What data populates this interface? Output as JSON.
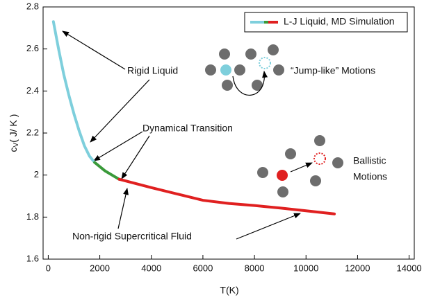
{
  "chart_data": {
    "type": "line",
    "x_label": "T(K)",
    "y_label": {
      "symbol": "c",
      "subscript": "V",
      "unit": "( J/ K )"
    },
    "legend": {
      "label": "L-J Liquid, MD Simulation",
      "position": "upper right"
    },
    "series": [
      {
        "color": "#7ecfdc",
        "x": [
          200,
          400,
          600,
          800,
          1000,
          1200,
          1400,
          1600,
          1800
        ],
        "values": [
          2.73,
          2.6,
          2.48,
          2.38,
          2.29,
          2.21,
          2.14,
          2.09,
          2.06
        ]
      },
      {
        "color": "#3a9a3a",
        "x": [
          1800,
          2200,
          2750
        ],
        "values": [
          2.06,
          2.02,
          1.98
        ]
      },
      {
        "color": "#e02020",
        "x": [
          2750,
          4000,
          5000,
          6000,
          7000,
          8000,
          9000,
          10000,
          11100
        ],
        "values": [
          1.98,
          1.94,
          1.91,
          1.88,
          1.865,
          1.855,
          1.843,
          1.83,
          1.815
        ]
      }
    ],
    "xlim": [
      -200,
      14200
    ],
    "xticks": [
      0,
      2000,
      4000,
      6000,
      8000,
      10000,
      12000,
      14000
    ],
    "ylim": [
      1.6,
      2.8
    ],
    "yticks": [
      1.6,
      1.8,
      2,
      2.2,
      2.4,
      2.6,
      2.8
    ],
    "annotations": [
      "Rigid Liquid",
      "Dynamical Transition",
      "Non-rigid Supercritical Fluid",
      "“Jump-like” Motions",
      "Ballistic",
      "Motions"
    ]
  }
}
